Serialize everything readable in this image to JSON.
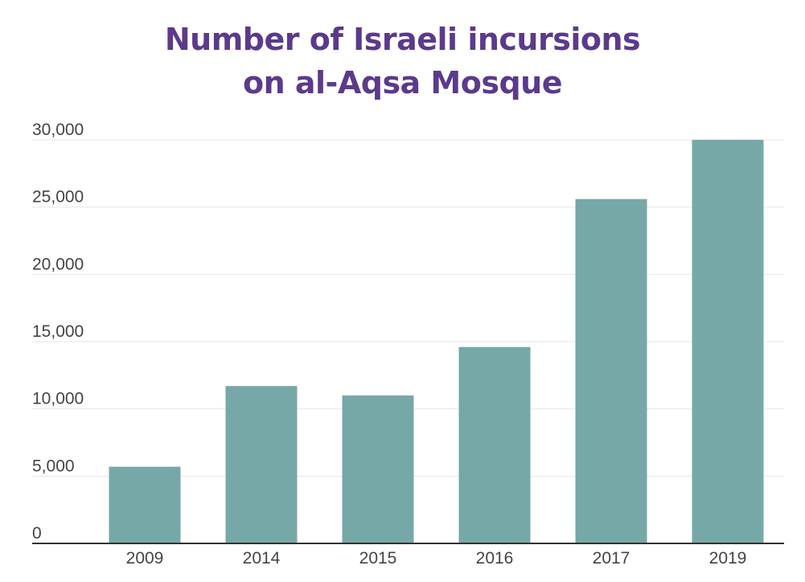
{
  "colors": {
    "title": "#5b3a8c",
    "bar": "#76a8a7",
    "gridline": "#e6e6e6",
    "axis": "#333333",
    "label": "#444444"
  },
  "chart_data": {
    "type": "bar",
    "title_lines": [
      "Number of Israeli incursions",
      "on al-Aqsa Mosque"
    ],
    "xlabel": "",
    "ylabel": "",
    "categories": [
      "2009",
      "2014",
      "2015",
      "2016",
      "2017",
      "2019"
    ],
    "values": [
      5700,
      11700,
      11000,
      14600,
      25600,
      30000
    ],
    "ylim": [
      0,
      30000
    ],
    "yticks": [
      0,
      5000,
      10000,
      15000,
      20000,
      25000,
      30000
    ],
    "ytick_labels": [
      "0",
      "5,000",
      "10,000",
      "15,000",
      "20,000",
      "25,000",
      "30,000"
    ],
    "grid": true,
    "legend": "none"
  }
}
